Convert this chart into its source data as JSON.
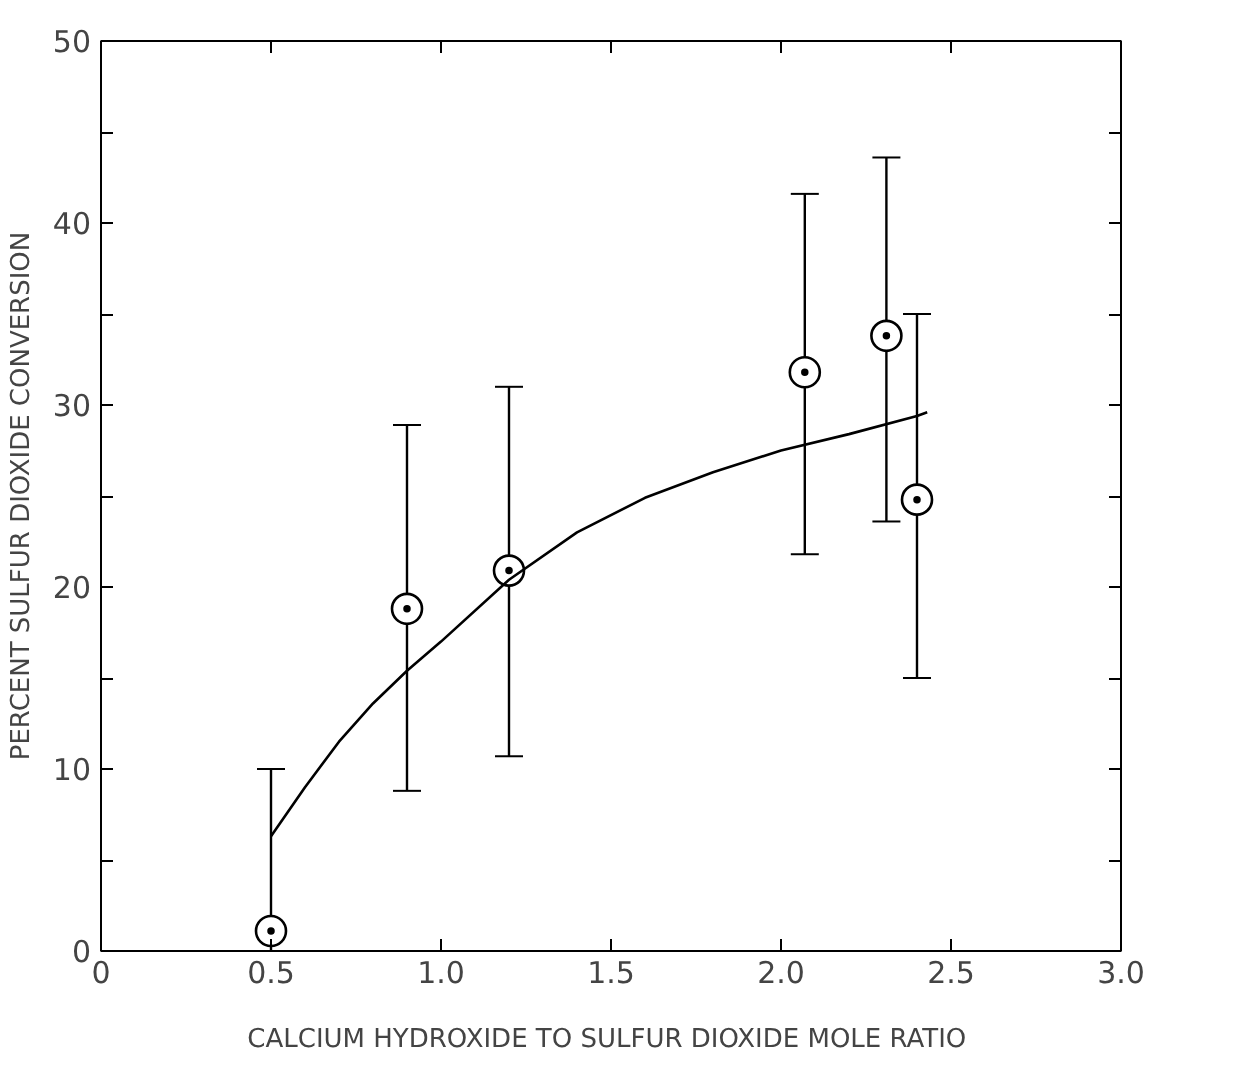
{
  "chart_data": {
    "type": "scatter",
    "xlabel": "CALCIUM  HYDROXIDE TO SULFUR DIOXIDE MOLE RATIO",
    "ylabel": "PERCENT SULFUR DIOXIDE CONVERSION",
    "xlim": [
      0,
      3.0
    ],
    "ylim": [
      0,
      50
    ],
    "xticks": [
      {
        "value": 0,
        "label": "0"
      },
      0.5,
      {
        "value": 1,
        "label": "1.0"
      },
      1.5,
      {
        "value": 2,
        "label": "2.0"
      },
      2.5,
      {
        "value": 3,
        "label": "3.0"
      }
    ],
    "yticks": [
      0,
      {
        "value": 5,
        "label": null
      },
      10,
      {
        "value": 15,
        "label": null
      },
      20,
      {
        "value": 25,
        "label": null
      },
      30,
      {
        "value": 35,
        "label": null
      },
      40,
      {
        "value": 45,
        "label": null
      },
      50
    ],
    "grid": false,
    "series": [
      {
        "color": "#000000",
        "marker": "circle",
        "x": [
          0.5,
          0.9,
          1.2,
          2.07,
          2.31,
          2.4
        ],
        "values": [
          1.1,
          18.8,
          20.9,
          31.8,
          33.8,
          24.8
        ],
        "errors": [
          [
            0,
            10
          ],
          [
            8.8,
            28.9
          ],
          [
            10.7,
            31.0
          ],
          [
            21.8,
            41.6
          ],
          [
            23.6,
            43.6
          ],
          [
            15.0,
            35.0
          ]
        ]
      },
      {
        "type": "line",
        "color": "#000000",
        "marker": "none",
        "line_style": "solid",
        "x": [
          0.5,
          0.6,
          0.7,
          0.8,
          0.9,
          1.0,
          1.2,
          1.4,
          1.6,
          1.8,
          2.0,
          2.2,
          2.4,
          2.43
        ],
        "values": [
          6.3,
          9.0,
          11.5,
          13.6,
          15.4,
          17.0,
          20.4,
          23.0,
          24.9,
          26.3,
          27.5,
          28.4,
          29.4,
          29.6
        ]
      }
    ]
  }
}
